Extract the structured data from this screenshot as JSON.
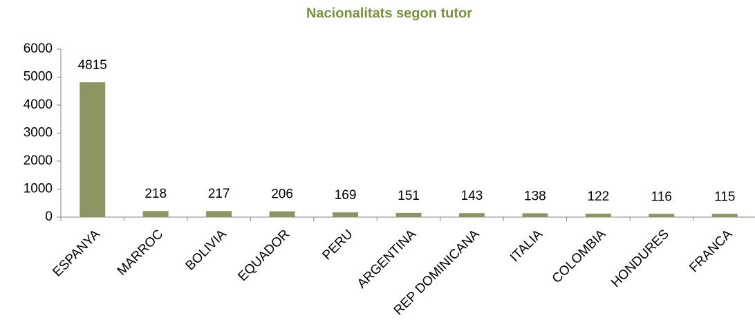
{
  "chart_data": {
    "type": "bar",
    "title": "Nacionalitats segon tutor",
    "categories": [
      "ESPANYA",
      "MARROC",
      "BOLIVIA",
      "EQUADOR",
      "PERU",
      "ARGENTINA",
      "REP DOMINICANA",
      "ITALIA",
      "COLOMBIA",
      "HONDURES",
      "FRANCA"
    ],
    "values": [
      4815,
      218,
      217,
      206,
      169,
      151,
      143,
      138,
      122,
      116,
      115
    ],
    "color": "#8f9562",
    "ylim": [
      0,
      6000
    ],
    "yticks": [
      0,
      1000,
      2000,
      3000,
      4000,
      5000,
      6000
    ],
    "grid": false
  }
}
